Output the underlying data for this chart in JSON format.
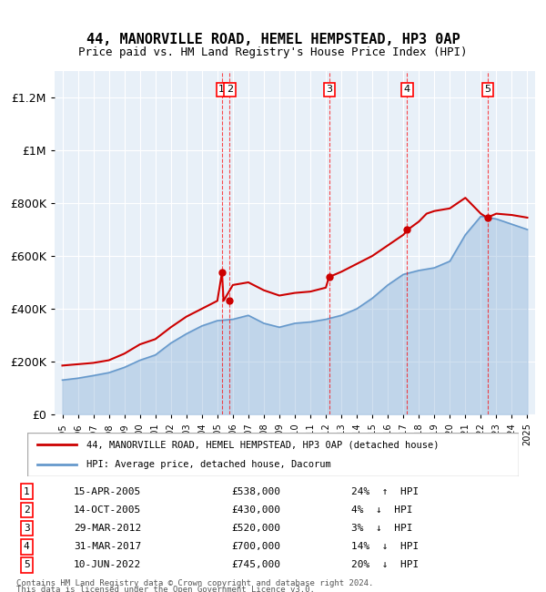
{
  "title1": "44, MANORVILLE ROAD, HEMEL HEMPSTEAD, HP3 0AP",
  "title2": "Price paid vs. HM Land Registry's House Price Index (HPI)",
  "ylabel": "",
  "ylim": [
    0,
    1300000
  ],
  "yticks": [
    0,
    200000,
    400000,
    600000,
    800000,
    1000000,
    1200000
  ],
  "ytick_labels": [
    "£0",
    "£200K",
    "£400K",
    "£600K",
    "£800K",
    "£1M",
    "£1.2M"
  ],
  "background_color": "#ffffff",
  "plot_bg_color": "#e8f0f8",
  "legend_line1": "44, MANORVILLE ROAD, HEMEL HEMPSTEAD, HP3 0AP (detached house)",
  "legend_line2": "HPI: Average price, detached house, Dacorum",
  "line1_color": "#cc0000",
  "line2_color": "#6699cc",
  "footer1": "Contains HM Land Registry data © Crown copyright and database right 2024.",
  "footer2": "This data is licensed under the Open Government Licence v3.0.",
  "transactions": [
    {
      "num": 1,
      "date": "15-APR-2005",
      "price": 538000,
      "pct": "24%",
      "dir": "↑",
      "year": 2005.29
    },
    {
      "num": 2,
      "date": "14-OCT-2005",
      "price": 430000,
      "pct": "4%",
      "dir": "↓",
      "year": 2005.79
    },
    {
      "num": 3,
      "date": "29-MAR-2012",
      "price": 520000,
      "pct": "3%",
      "dir": "↓",
      "year": 2012.24
    },
    {
      "num": 4,
      "date": "31-MAR-2017",
      "price": 700000,
      "pct": "14%",
      "dir": "↓",
      "year": 2017.25
    },
    {
      "num": 5,
      "date": "10-JUN-2022",
      "price": 745000,
      "pct": "20%",
      "dir": "↓",
      "year": 2022.44
    }
  ],
  "hpi_years": [
    1995,
    1996,
    1997,
    1998,
    1999,
    2000,
    2001,
    2002,
    2003,
    2004,
    2005,
    2006,
    2007,
    2008,
    2009,
    2010,
    2011,
    2012,
    2013,
    2014,
    2015,
    2016,
    2017,
    2018,
    2019,
    2020,
    2021,
    2022,
    2023,
    2024,
    2025
  ],
  "hpi_values": [
    130000,
    137000,
    147000,
    158000,
    178000,
    205000,
    225000,
    270000,
    305000,
    335000,
    355000,
    360000,
    375000,
    345000,
    330000,
    345000,
    350000,
    360000,
    375000,
    400000,
    440000,
    490000,
    530000,
    545000,
    555000,
    580000,
    680000,
    750000,
    740000,
    720000,
    700000
  ],
  "price_years": [
    1995,
    1996,
    1997,
    1998,
    1999,
    2000,
    2001,
    2002,
    2003,
    2004,
    2005,
    2005.3,
    2005.4,
    2006,
    2007,
    2008,
    2009,
    2010,
    2011,
    2012,
    2012.2,
    2013,
    2014,
    2015,
    2016,
    2017,
    2017.3,
    2018,
    2018.5,
    2019,
    2020,
    2021,
    2022,
    2022.4,
    2023,
    2024,
    2025
  ],
  "price_values": [
    185000,
    190000,
    195000,
    205000,
    230000,
    265000,
    285000,
    330000,
    370000,
    400000,
    430000,
    538000,
    430000,
    490000,
    500000,
    470000,
    450000,
    460000,
    465000,
    480000,
    520000,
    540000,
    570000,
    600000,
    640000,
    680000,
    700000,
    730000,
    760000,
    770000,
    780000,
    820000,
    760000,
    745000,
    760000,
    755000,
    745000
  ]
}
